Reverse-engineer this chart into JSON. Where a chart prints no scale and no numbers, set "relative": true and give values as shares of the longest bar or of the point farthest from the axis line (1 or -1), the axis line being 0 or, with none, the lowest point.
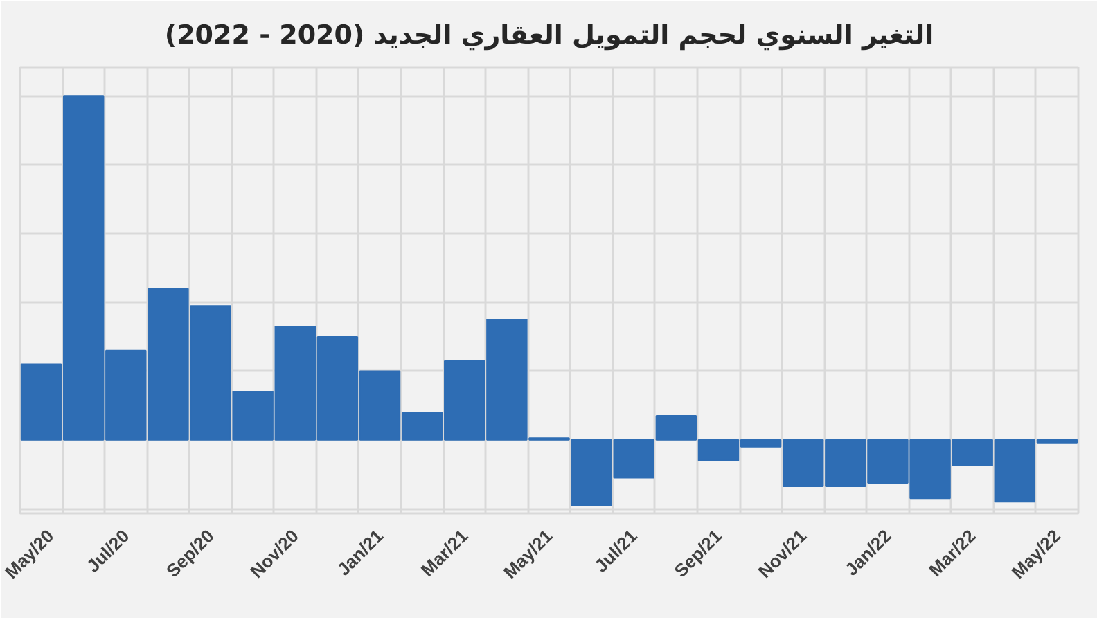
{
  "chart_data": {
    "type": "bar",
    "title": "التغير السنوي لحجم التمويل العقاري الجديد (2020 - 2022)",
    "categories": [
      "May/20",
      null,
      "Jul/20",
      null,
      "Sep/20",
      null,
      "Nov/20",
      null,
      "Jan/21",
      null,
      "Mar/21",
      null,
      "May/21",
      null,
      "Jul/21",
      null,
      "Sep/21",
      null,
      "Nov/21",
      null,
      "Jan/22",
      null,
      "Mar/22",
      null,
      "May/22"
    ],
    "values": [
      0.22,
      1.0,
      0.26,
      0.44,
      0.39,
      0.14,
      0.33,
      0.3,
      0.2,
      0.08,
      0.23,
      0.35,
      0.005,
      -0.19,
      -0.11,
      0.07,
      -0.06,
      -0.02,
      -0.135,
      -0.135,
      -0.125,
      -0.17,
      -0.075,
      -0.18,
      -0.01
    ],
    "color": "#2e6db4",
    "relative": true,
    "grid": true
  }
}
